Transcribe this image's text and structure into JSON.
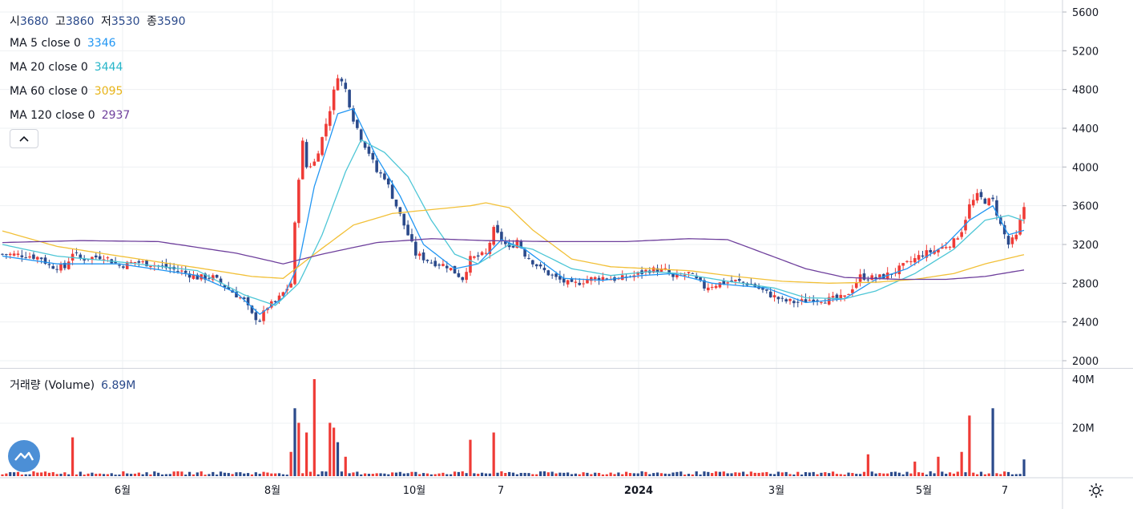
{
  "legend": {
    "ohlc": {
      "open_label": "시",
      "open": "3680",
      "high_label": "고",
      "high": "3860",
      "low_label": "저",
      "low": "3530",
      "close_label": "종",
      "close": "3590"
    },
    "ma": [
      {
        "label": "MA 5 close 0",
        "value": "3346",
        "color": "#2196f3"
      },
      {
        "label": "MA 20 close 0",
        "value": "3444",
        "color": "#4dc6d6"
      },
      {
        "label": "MA 60 close 0",
        "value": "3095",
        "color": "#f2c037"
      },
      {
        "label": "MA 120 close 0",
        "value": "2937",
        "color": "#6e3f9c"
      }
    ],
    "volume_label": "거래량 (Volume)",
    "volume_value": "6.89M"
  },
  "icons": {
    "collapse": "chevron-up-icon",
    "logo": "tradingview-cloud-icon",
    "settings": "gear-icon"
  },
  "colors": {
    "up": "#ef3b36",
    "down": "#2b4a8b",
    "grid": "#eef0f3",
    "axis_text": "#131722"
  },
  "chart_data": [
    {
      "type": "candlestick",
      "title": "",
      "price_scale": [
        2000,
        5600
      ],
      "price_ticks": [
        "2000",
        "2400",
        "2800",
        "3200",
        "3600",
        "4000",
        "4400",
        "4800",
        "5200",
        "5600"
      ],
      "time_ticks": [
        "6월",
        "8월",
        "10월",
        "7",
        "2024",
        "3월",
        "5월",
        "7"
      ],
      "series": [
        {
          "name": "MA 5",
          "last": 3346
        },
        {
          "name": "MA 20",
          "last": 3444
        },
        {
          "name": "MA 60",
          "last": 3095
        },
        {
          "name": "MA 120",
          "last": 2937
        }
      ],
      "close_path": [
        [
          0,
          3100
        ],
        [
          6,
          3090
        ],
        [
          10,
          3060
        ],
        [
          12,
          2980
        ],
        [
          16,
          2960
        ],
        [
          18,
          3120
        ],
        [
          20,
          3050
        ],
        [
          26,
          3080
        ],
        [
          30,
          2980
        ],
        [
          34,
          3020
        ],
        [
          38,
          3000
        ],
        [
          42,
          2960
        ],
        [
          46,
          2920
        ],
        [
          50,
          2860
        ],
        [
          54,
          2860
        ],
        [
          58,
          2740
        ],
        [
          62,
          2620
        ],
        [
          64,
          2470
        ],
        [
          66,
          2420
        ],
        [
          68,
          2560
        ],
        [
          70,
          2600
        ],
        [
          72,
          2700
        ],
        [
          74,
          2800
        ],
        [
          75,
          3400
        ],
        [
          76,
          3900
        ],
        [
          77,
          4250
        ],
        [
          78,
          4000
        ],
        [
          80,
          4050
        ],
        [
          82,
          4300
        ],
        [
          84,
          4600
        ],
        [
          86,
          4950
        ],
        [
          88,
          4800
        ],
        [
          90,
          4500
        ],
        [
          92,
          4300
        ],
        [
          94,
          4150
        ],
        [
          96,
          3950
        ],
        [
          98,
          3900
        ],
        [
          100,
          3700
        ],
        [
          102,
          3500
        ],
        [
          104,
          3300
        ],
        [
          106,
          3100
        ],
        [
          110,
          3020
        ],
        [
          114,
          2980
        ],
        [
          118,
          2850
        ],
        [
          120,
          3050
        ],
        [
          124,
          3100
        ],
        [
          126,
          3350
        ],
        [
          128,
          3250
        ],
        [
          130,
          3150
        ],
        [
          132,
          3250
        ],
        [
          134,
          3100
        ],
        [
          138,
          2950
        ],
        [
          142,
          2850
        ],
        [
          146,
          2780
        ],
        [
          150,
          2840
        ],
        [
          154,
          2860
        ],
        [
          158,
          2840
        ],
        [
          162,
          2880
        ],
        [
          166,
          2940
        ],
        [
          170,
          2930
        ],
        [
          172,
          2850
        ],
        [
          176,
          2900
        ],
        [
          180,
          2760
        ],
        [
          184,
          2800
        ],
        [
          188,
          2820
        ],
        [
          192,
          2790
        ],
        [
          196,
          2700
        ],
        [
          200,
          2620
        ],
        [
          204,
          2600
        ],
        [
          208,
          2640
        ],
        [
          212,
          2630
        ],
        [
          216,
          2650
        ],
        [
          220,
          2870
        ],
        [
          224,
          2850
        ],
        [
          228,
          2900
        ],
        [
          232,
          3000
        ],
        [
          236,
          3100
        ],
        [
          240,
          3150
        ],
        [
          244,
          3230
        ],
        [
          246,
          3350
        ],
        [
          248,
          3600
        ],
        [
          250,
          3700
        ],
        [
          252,
          3650
        ],
        [
          254,
          3650
        ],
        [
          256,
          3400
        ],
        [
          258,
          3200
        ],
        [
          260,
          3280
        ],
        [
          262,
          3590
        ]
      ],
      "ma_paths": {
        "MA 5": [
          [
            0,
            3080
          ],
          [
            14,
            3000
          ],
          [
            30,
            3000
          ],
          [
            50,
            2880
          ],
          [
            60,
            2700
          ],
          [
            66,
            2480
          ],
          [
            72,
            2650
          ],
          [
            76,
            3000
          ],
          [
            80,
            3800
          ],
          [
            86,
            4550
          ],
          [
            90,
            4600
          ],
          [
            96,
            4100
          ],
          [
            102,
            3700
          ],
          [
            108,
            3200
          ],
          [
            116,
            2950
          ],
          [
            122,
            3000
          ],
          [
            128,
            3250
          ],
          [
            134,
            3150
          ],
          [
            144,
            2850
          ],
          [
            154,
            2830
          ],
          [
            164,
            2880
          ],
          [
            172,
            2900
          ],
          [
            182,
            2800
          ],
          [
            196,
            2750
          ],
          [
            206,
            2600
          ],
          [
            216,
            2640
          ],
          [
            224,
            2840
          ],
          [
            232,
            2950
          ],
          [
            242,
            3200
          ],
          [
            248,
            3450
          ],
          [
            254,
            3600
          ],
          [
            258,
            3300
          ],
          [
            262,
            3346
          ]
        ],
        "MA 20": [
          [
            0,
            3200
          ],
          [
            14,
            3080
          ],
          [
            30,
            3020
          ],
          [
            50,
            2930
          ],
          [
            62,
            2680
          ],
          [
            70,
            2570
          ],
          [
            76,
            2800
          ],
          [
            82,
            3300
          ],
          [
            88,
            3950
          ],
          [
            92,
            4280
          ],
          [
            98,
            4150
          ],
          [
            104,
            3900
          ],
          [
            110,
            3450
          ],
          [
            116,
            3100
          ],
          [
            122,
            3000
          ],
          [
            130,
            3200
          ],
          [
            136,
            3150
          ],
          [
            146,
            2950
          ],
          [
            156,
            2880
          ],
          [
            166,
            2920
          ],
          [
            174,
            2900
          ],
          [
            186,
            2820
          ],
          [
            198,
            2750
          ],
          [
            206,
            2650
          ],
          [
            216,
            2640
          ],
          [
            224,
            2720
          ],
          [
            234,
            2900
          ],
          [
            244,
            3150
          ],
          [
            252,
            3450
          ],
          [
            258,
            3500
          ],
          [
            262,
            3444
          ]
        ],
        "MA 60": [
          [
            0,
            3340
          ],
          [
            14,
            3180
          ],
          [
            30,
            3080
          ],
          [
            50,
            2960
          ],
          [
            64,
            2870
          ],
          [
            72,
            2850
          ],
          [
            80,
            3100
          ],
          [
            90,
            3400
          ],
          [
            100,
            3520
          ],
          [
            110,
            3560
          ],
          [
            120,
            3600
          ],
          [
            124,
            3630
          ],
          [
            130,
            3580
          ],
          [
            136,
            3350
          ],
          [
            146,
            3050
          ],
          [
            156,
            2970
          ],
          [
            166,
            2950
          ],
          [
            176,
            2930
          ],
          [
            188,
            2870
          ],
          [
            200,
            2820
          ],
          [
            212,
            2800
          ],
          [
            224,
            2810
          ],
          [
            234,
            2840
          ],
          [
            244,
            2900
          ],
          [
            252,
            3000
          ],
          [
            262,
            3095
          ]
        ],
        "MA 120": [
          [
            0,
            3220
          ],
          [
            20,
            3240
          ],
          [
            40,
            3230
          ],
          [
            60,
            3110
          ],
          [
            72,
            3000
          ],
          [
            82,
            3100
          ],
          [
            96,
            3220
          ],
          [
            110,
            3260
          ],
          [
            124,
            3240
          ],
          [
            140,
            3230
          ],
          [
            160,
            3230
          ],
          [
            176,
            3260
          ],
          [
            186,
            3250
          ],
          [
            196,
            3100
          ],
          [
            206,
            2950
          ],
          [
            216,
            2860
          ],
          [
            230,
            2840
          ],
          [
            242,
            2840
          ],
          [
            252,
            2870
          ],
          [
            262,
            2937
          ]
        ]
      },
      "volume_scale": [
        0,
        40
      ],
      "volume_ticks": [
        "20M",
        "40M"
      ],
      "volume_last": "6.89M",
      "volume_spikes": [
        {
          "i": 18,
          "v": 16,
          "dir": "up"
        },
        {
          "i": 74,
          "v": 10,
          "dir": "up"
        },
        {
          "i": 75,
          "v": 28,
          "dir": "down"
        },
        {
          "i": 76,
          "v": 22,
          "dir": "up"
        },
        {
          "i": 78,
          "v": 18,
          "dir": "up"
        },
        {
          "i": 80,
          "v": 40,
          "dir": "up"
        },
        {
          "i": 84,
          "v": 22,
          "dir": "up"
        },
        {
          "i": 85,
          "v": 20,
          "dir": "up"
        },
        {
          "i": 86,
          "v": 14,
          "dir": "down"
        },
        {
          "i": 88,
          "v": 8,
          "dir": "up"
        },
        {
          "i": 120,
          "v": 15,
          "dir": "up"
        },
        {
          "i": 126,
          "v": 18,
          "dir": "up"
        },
        {
          "i": 222,
          "v": 9,
          "dir": "up"
        },
        {
          "i": 234,
          "v": 6,
          "dir": "up"
        },
        {
          "i": 240,
          "v": 8,
          "dir": "up"
        },
        {
          "i": 246,
          "v": 10,
          "dir": "up"
        },
        {
          "i": 248,
          "v": 25,
          "dir": "up"
        },
        {
          "i": 254,
          "v": 28,
          "dir": "down"
        },
        {
          "i": 262,
          "v": 6.89,
          "dir": "down"
        }
      ]
    }
  ]
}
